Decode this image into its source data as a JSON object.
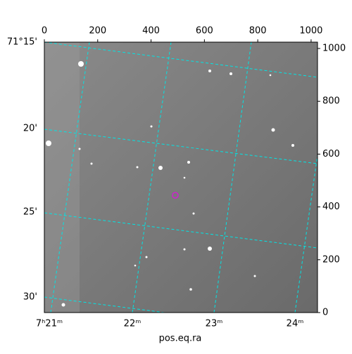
{
  "chart_data": {
    "type": "image",
    "xlabel": "pos.eq.ra",
    "xlim": [
      0,
      1024
    ],
    "xticks": [
      0,
      200,
      400,
      600,
      800,
      1000
    ],
    "ylim": [
      0,
      1024
    ],
    "yticks": [
      0,
      200,
      400,
      600,
      800,
      1000
    ],
    "ra_ticks": [
      "7ʰ21ᵐ",
      "22ᵐ",
      "23ᵐ",
      "24ᵐ"
    ],
    "dec_ticks": [
      "71°15'",
      "20'",
      "25'",
      "30'"
    ]
  }
}
